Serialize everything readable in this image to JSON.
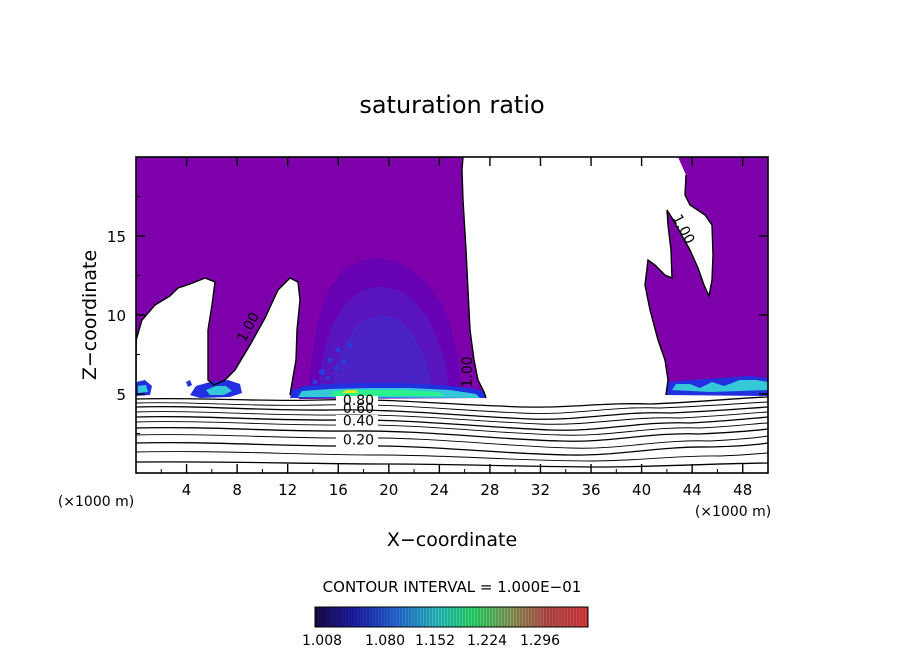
{
  "chart_data": {
    "type": "heatmap",
    "title": "saturation ratio",
    "xlabel": "X−coordinate",
    "ylabel": "Z−coordinate",
    "x_unit_left": "(×1000 m)",
    "x_unit_right": "(×1000 m)",
    "xlim": [
      0,
      50
    ],
    "ylim": [
      0,
      20
    ],
    "x_ticks": [
      4,
      8,
      12,
      16,
      20,
      24,
      28,
      32,
      36,
      40,
      44,
      48
    ],
    "y_ticks": [
      5,
      10,
      15
    ],
    "contour_interval_text": "CONTOUR INTERVAL = 1.000E−01",
    "contour_labels": [
      {
        "text": "1.00",
        "x": 9.2,
        "z": 9.1
      },
      {
        "text": "1.00",
        "x": 26.6,
        "z": 6.4
      },
      {
        "text": "1.00",
        "x": 43.0,
        "z": 15.3
      },
      {
        "text": "0.80",
        "x": 17.6,
        "z": 4.3
      },
      {
        "text": "0.60",
        "x": 17.6,
        "z": 3.8
      },
      {
        "text": "0.40",
        "x": 17.6,
        "z": 3.0
      },
      {
        "text": "0.20",
        "x": 17.6,
        "z": 1.8
      }
    ],
    "colorbar_labels": [
      "1.008",
      "1.080",
      "1.152",
      "1.224",
      "1.296"
    ],
    "colors": {
      "supersaturated_base": "#7d00aa",
      "band_1": "#6800b4",
      "band_2": "#5a14be",
      "band_3": "#4a22c6",
      "bright_low": "#2230e0",
      "cyan": "#34c8d8",
      "green": "#2cf08c",
      "yellow": "#d8f020"
    }
  }
}
